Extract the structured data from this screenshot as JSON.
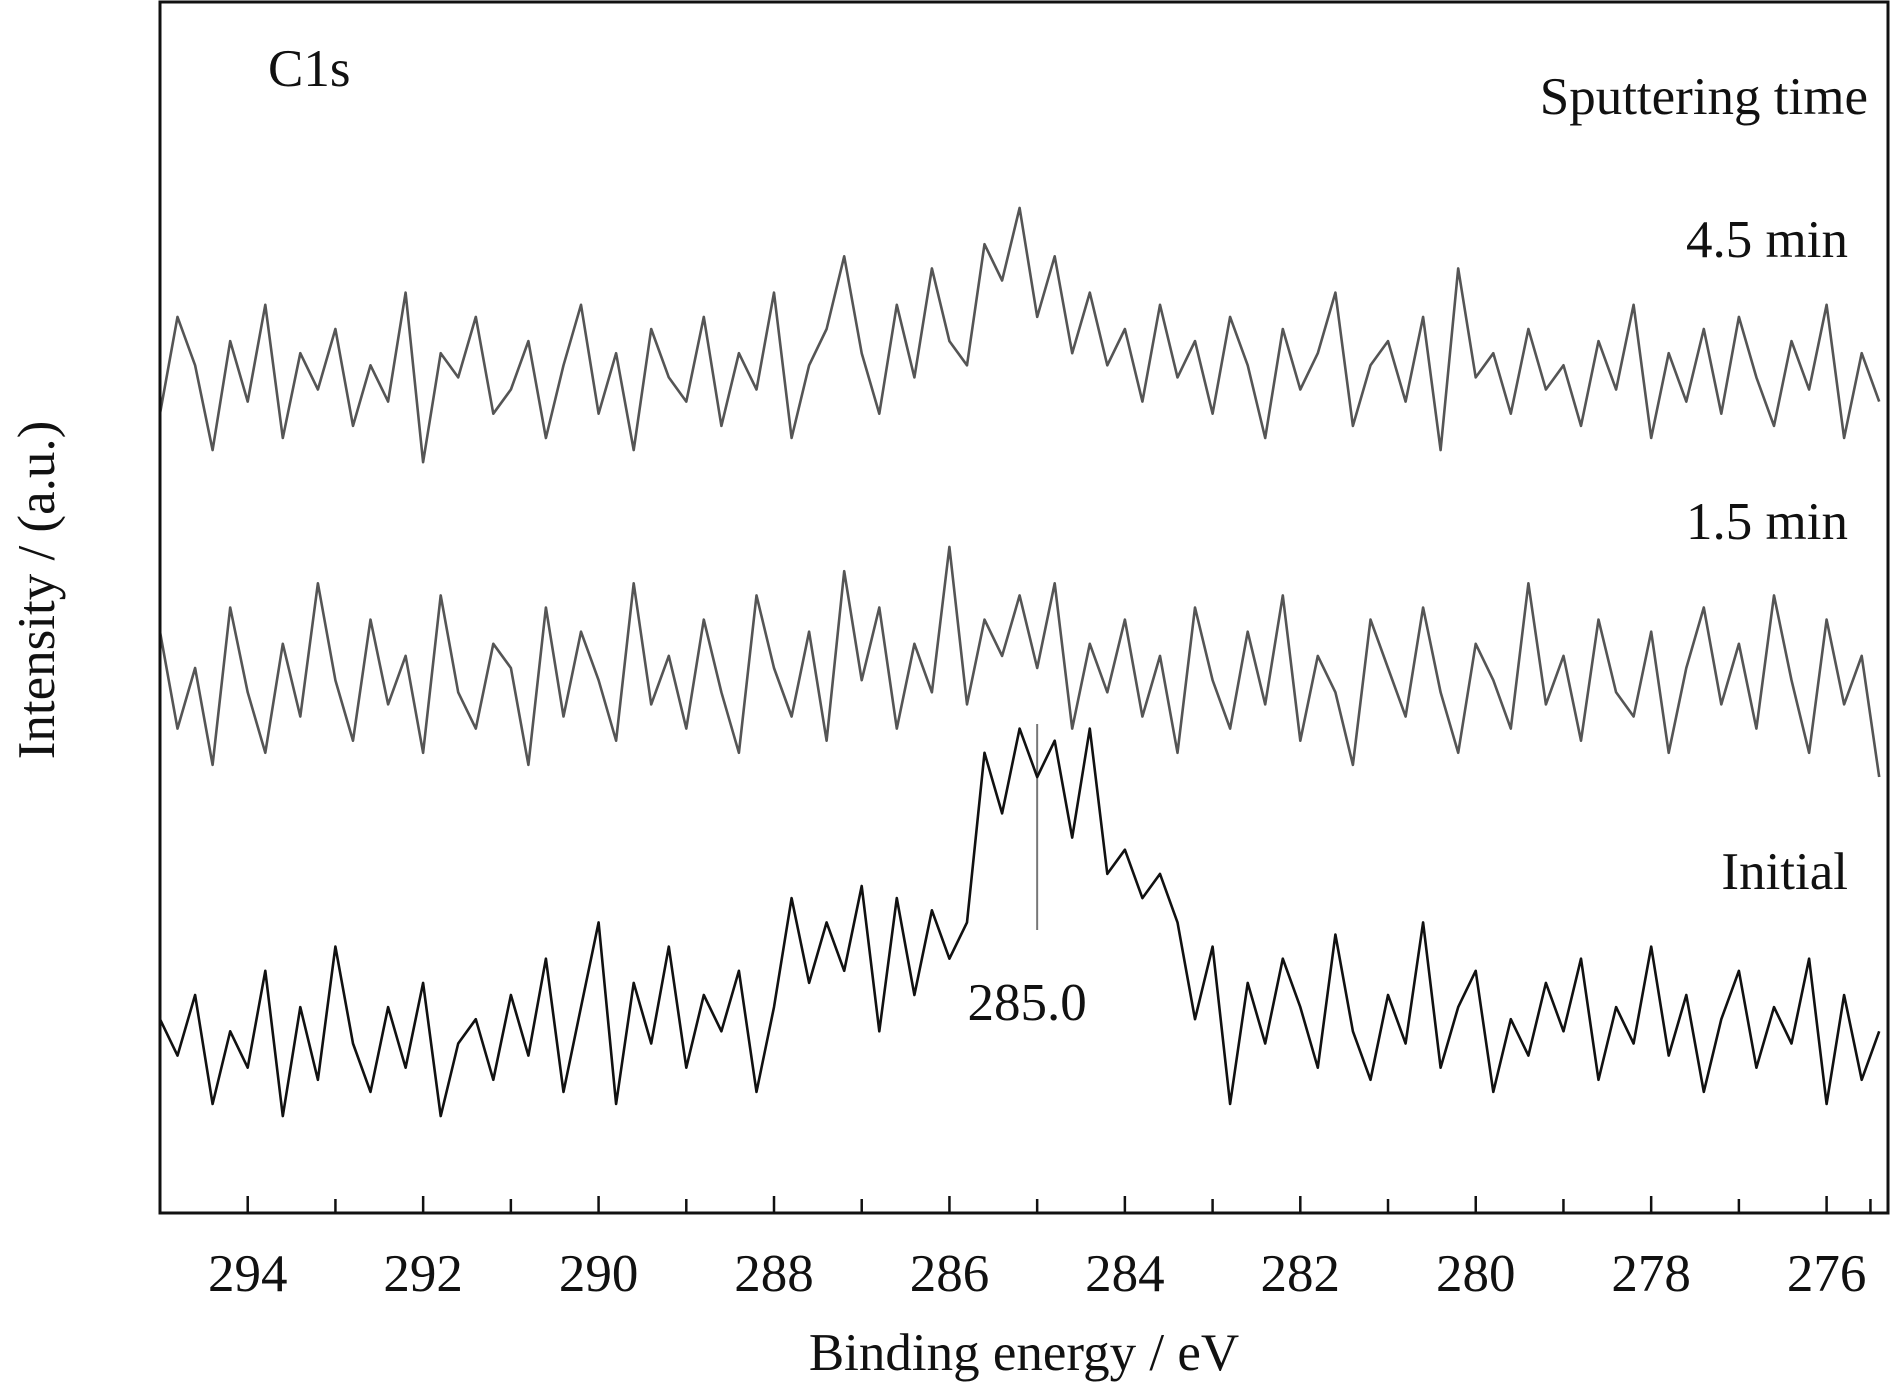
{
  "chart_data": {
    "type": "line",
    "title": "C1s",
    "legend_title": "Sputtering time",
    "xlabel": "Binding energy / eV",
    "ylabel": "Intensity / (a.u.)",
    "xlim": [
      295.0,
      275.3
    ],
    "ylim": [
      0,
      100
    ],
    "xticks": [
      294,
      292,
      290,
      288,
      286,
      284,
      282,
      280,
      278,
      276
    ],
    "xminor_ticks": [
      295,
      293,
      291,
      289,
      287,
      285,
      283,
      281,
      279,
      277,
      275.5
    ],
    "annotations": [
      {
        "text": "285.0",
        "x": 285.0
      }
    ],
    "x": [
      295.0,
      294.8,
      294.6,
      294.4,
      294.2,
      294.0,
      293.8,
      293.6,
      293.4,
      293.2,
      293.0,
      292.8,
      292.6,
      292.4,
      292.2,
      292.0,
      291.8,
      291.6,
      291.4,
      291.2,
      291.0,
      290.8,
      290.6,
      290.4,
      290.2,
      290.0,
      289.8,
      289.6,
      289.4,
      289.2,
      289.0,
      288.8,
      288.6,
      288.4,
      288.2,
      288.0,
      287.8,
      287.6,
      287.4,
      287.2,
      287.0,
      286.8,
      286.6,
      286.4,
      286.2,
      286.0,
      285.8,
      285.6,
      285.4,
      285.2,
      285.0,
      284.8,
      284.6,
      284.4,
      284.2,
      284.0,
      283.8,
      283.6,
      283.4,
      283.2,
      283.0,
      282.8,
      282.6,
      282.4,
      282.2,
      282.0,
      281.8,
      281.6,
      281.4,
      281.2,
      281.0,
      280.8,
      280.6,
      280.4,
      280.2,
      280.0,
      279.8,
      279.6,
      279.4,
      279.2,
      279.0,
      278.8,
      278.6,
      278.4,
      278.2,
      278.0,
      277.8,
      277.6,
      277.4,
      277.2,
      277.0,
      276.8,
      276.6,
      276.4,
      276.2,
      276.0,
      275.8,
      275.6,
      275.4
    ],
    "series": [
      {
        "name": "4.5 min",
        "color": "#555555",
        "values": [
          66,
          74,
          70,
          63,
          72,
          67,
          75,
          64,
          71,
          68,
          73,
          65,
          70,
          67,
          76,
          62,
          71,
          69,
          74,
          66,
          68,
          72,
          64,
          70,
          75,
          66,
          71,
          63,
          73,
          69,
          67,
          74,
          65,
          71,
          68,
          76,
          64,
          70,
          73,
          79,
          71,
          66,
          75,
          69,
          78,
          72,
          70,
          80,
          77,
          83,
          74,
          79,
          71,
          76,
          70,
          73,
          67,
          75,
          69,
          72,
          66,
          74,
          70,
          64,
          73,
          68,
          71,
          76,
          65,
          70,
          72,
          67,
          74,
          63,
          78,
          69,
          71,
          66,
          73,
          68,
          70,
          65,
          72,
          68,
          75,
          64,
          71,
          67,
          73,
          66,
          74,
          69,
          65,
          72,
          68,
          75,
          64,
          71,
          67
        ]
      },
      {
        "name": "1.5 min",
        "color": "#555555",
        "values": [
          48,
          40,
          45,
          37,
          50,
          43,
          38,
          47,
          41,
          52,
          44,
          39,
          49,
          42,
          46,
          38,
          51,
          43,
          40,
          47,
          45,
          37,
          50,
          41,
          48,
          44,
          39,
          52,
          42,
          46,
          40,
          49,
          43,
          38,
          51,
          45,
          41,
          48,
          39,
          53,
          44,
          50,
          40,
          47,
          43,
          55,
          42,
          49,
          46,
          51,
          45,
          52,
          40,
          47,
          43,
          49,
          41,
          46,
          38,
          50,
          44,
          40,
          48,
          42,
          51,
          39,
          46,
          43,
          37,
          49,
          45,
          41,
          50,
          43,
          38,
          47,
          44,
          40,
          52,
          42,
          46,
          39,
          49,
          43,
          41,
          48,
          38,
          45,
          50,
          42,
          47,
          40,
          51,
          44,
          38,
          49,
          42,
          46,
          36
        ]
      },
      {
        "name": "Initial",
        "color": "#111111",
        "values": [
          16,
          13,
          18,
          9,
          15,
          12,
          20,
          8,
          17,
          11,
          22,
          14,
          10,
          17,
          12,
          19,
          8,
          14,
          16,
          11,
          18,
          13,
          21,
          10,
          17,
          24,
          9,
          19,
          14,
          22,
          12,
          18,
          15,
          20,
          10,
          17,
          26,
          19,
          24,
          20,
          27,
          15,
          26,
          18,
          25,
          21,
          24,
          38,
          33,
          40,
          36,
          39,
          31,
          40,
          28,
          30,
          26,
          28,
          24,
          16,
          22,
          9,
          19,
          14,
          21,
          17,
          12,
          23,
          15,
          11,
          18,
          14,
          24,
          12,
          17,
          20,
          10,
          16,
          13,
          19,
          15,
          21,
          11,
          17,
          14,
          22,
          13,
          18,
          10,
          16,
          20,
          12,
          17,
          14,
          21,
          9,
          18,
          11,
          15
        ]
      }
    ]
  }
}
